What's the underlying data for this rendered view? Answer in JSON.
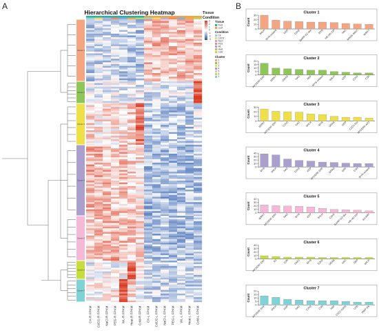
{
  "panels": {
    "a_label": "A",
    "b_label": "B"
  },
  "heatmap": {
    "title": "Hierarchical Clustering Heatmap",
    "top_labels": [
      "Tissue",
      "Condition"
    ],
    "columns": [
      "CK-R FPKM",
      "CdCl2-R FPKM",
      "NaCl-R FPKM",
      "PEG-R FPKM",
      "WL-R FPKM",
      "Heat-R FPKM",
      "Cold-R FPKM",
      "CK-L FPKM",
      "CdCl2-L FPKM",
      "NaCl-L FPKM",
      "PEG-L FPKM",
      "WL-L FPKM",
      "Heat-L FPKM",
      "Cold-L FPKM"
    ],
    "cluster_labels": [
      "Cluster 1",
      "Cluster 2",
      "Cluster 3",
      "Cluster 4",
      "Cluster 5",
      "Cluster 6",
      "Cluster 7"
    ],
    "cluster_colors": [
      "#f4a582",
      "#8fc65a",
      "#f0e048",
      "#ab9fcf",
      "#f5b8d6",
      "#c8dc3a",
      "#7fd3d6"
    ],
    "legend": {
      "scale_ticks": [
        "3",
        "2",
        "1",
        "0",
        "-1",
        "-2",
        "-3"
      ],
      "tissue_title": "Tissue",
      "tissue_items": [
        {
          "label": "Root",
          "color": "#1fb5a8"
        },
        {
          "label": "Leaf",
          "color": "#f0a640"
        }
      ],
      "condition_title": "Condition",
      "condition_items": [
        {
          "label": "CK",
          "color": "#9ad4cc"
        },
        {
          "label": "CdCl2",
          "color": "#f2d56b"
        },
        {
          "label": "NaCl",
          "color": "#b9aedb"
        },
        {
          "label": "PEG",
          "color": "#f08a73"
        },
        {
          "label": "WL",
          "color": "#84afd8"
        },
        {
          "label": "Heat",
          "color": "#f3a84a"
        },
        {
          "label": "Cold",
          "color": "#b8d96a"
        }
      ],
      "cluster_title": "Cluster",
      "cluster_items": [
        "1",
        "2",
        "3",
        "4",
        "5",
        "6",
        "7"
      ]
    }
  },
  "chart_data": [
    {
      "type": "bar",
      "title": "Cluster 1",
      "ylabel": "Count",
      "ylim": [
        0,
        30
      ],
      "yticks": [
        0,
        10,
        20,
        30
      ],
      "color": "#f4a582",
      "categories": [
        "bHLH",
        "MYB-related",
        "bZIP",
        "C2H2",
        "GARP-G2-like",
        "MYB",
        "HB-HD-ZIP",
        "NAC",
        "MADS-MIKC",
        "WRKY"
      ],
      "values": [
        30,
        19,
        17,
        16,
        15,
        15,
        14,
        12,
        11,
        10
      ]
    },
    {
      "type": "bar",
      "title": "Cluster 2",
      "ylabel": "Count",
      "ylim": [
        0,
        20
      ],
      "yticks": [
        0,
        5,
        10,
        15,
        20
      ],
      "color": "#8fc65a",
      "categories": [
        "AP2/ERF-ERF",
        "WRKY",
        "GRAS",
        "NAC",
        "HSF",
        "MYB-related",
        "bHLH",
        "bZIP",
        "C2H2",
        "C3H"
      ],
      "values": [
        17,
        10,
        9,
        8,
        7,
        7,
        5,
        4,
        3,
        3
      ]
    },
    {
      "type": "bar",
      "title": "Cluster 3",
      "ylabel": "Count",
      "ylim": [
        0,
        30
      ],
      "yticks": [
        0,
        10,
        20,
        30
      ],
      "color": "#f0e048",
      "categories": [
        "WRKY",
        "AP2/ERF-ERF",
        "C2H2",
        "NAC",
        "bHLH",
        "MYB",
        "GRAS",
        "bZIP",
        "C2C2-Dof",
        "AP2/ERF-AP2"
      ],
      "values": [
        26,
        21,
        20,
        19,
        15,
        14,
        10,
        8,
        8,
        6
      ]
    },
    {
      "type": "bar",
      "title": "Cluster 4",
      "ylabel": "Count",
      "ylim": [
        0,
        40
      ],
      "yticks": [
        0,
        10,
        20,
        30,
        40
      ],
      "color": "#ab9fcf",
      "categories": [
        "MYB",
        "bHLH",
        "NAC",
        "C2H2",
        "bZIP",
        "AP2/ERF-ERF",
        "GRAS",
        "GRF",
        "C3H",
        "MYB-related"
      ],
      "values": [
        38,
        35,
        23,
        19,
        17,
        14,
        13,
        11,
        10,
        10
      ]
    },
    {
      "type": "bar",
      "title": "Cluster 5",
      "ylabel": "Count",
      "ylim": [
        0,
        40
      ],
      "yticks": [
        0,
        10,
        20,
        30,
        40
      ],
      "color": "#f5b8d6",
      "categories": [
        "WRKY",
        "AP2/ERF-ERF",
        "NAC",
        "MYB",
        "bZIP",
        "bHLH",
        "C2H2",
        "GARP-G2-like",
        "HB-HD-ZIP",
        "B3-ARF"
      ],
      "values": [
        23,
        21,
        20,
        19,
        17,
        13,
        10,
        9,
        8,
        6
      ]
    },
    {
      "type": "bar",
      "title": "Cluster 6",
      "ylabel": "Count",
      "ylim": [
        0,
        40
      ],
      "yticks": [
        0,
        10,
        20,
        30,
        40
      ],
      "color": "#c8dc3a",
      "categories": [
        "AP2/ERF-ERF",
        "B3",
        "C3H",
        "FAR1",
        "MYB",
        "C2H2",
        "GRAS",
        "NAC",
        "SBP",
        "bHLH"
      ],
      "values": [
        9,
        7,
        5,
        5,
        5,
        4,
        4,
        4,
        4,
        4
      ]
    },
    {
      "type": "bar",
      "title": "Cluster 7",
      "ylabel": "Count",
      "ylim": [
        0,
        20
      ],
      "yticks": [
        0,
        5,
        10,
        15,
        20
      ],
      "color": "#7fd3d6",
      "categories": [
        "AP2/ERF-ERF",
        "bHLH",
        "bZIP",
        "NAC",
        "C2H2",
        "C3H",
        "HSF",
        "C2C2-GATA",
        "LOB",
        "RWP-RK"
      ],
      "values": [
        13,
        11,
        8,
        7,
        6,
        6,
        6,
        5,
        4,
        4
      ]
    }
  ]
}
